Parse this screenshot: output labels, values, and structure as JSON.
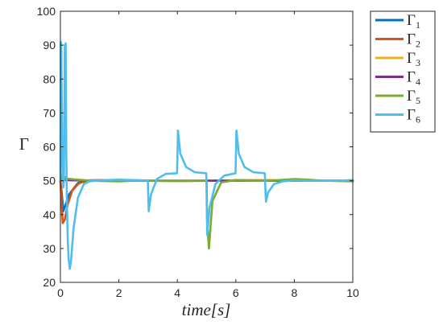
{
  "chart_data": {
    "type": "line",
    "title": "",
    "xlabel": "time[s]",
    "ylabel": "Γ",
    "xlim": [
      0,
      10
    ],
    "ylim": [
      20,
      100
    ],
    "xticks": [
      0,
      2,
      4,
      6,
      8,
      10
    ],
    "yticks": [
      20,
      30,
      40,
      50,
      60,
      70,
      80,
      90,
      100
    ],
    "grid": false,
    "legend_position": "outside-top-right",
    "series": [
      {
        "name": "Γ1",
        "label_main": "Γ",
        "label_sub": "1",
        "color": "#0072BD",
        "x": [
          0,
          0.05,
          0.1,
          0.3,
          0.6,
          1.0,
          2.0,
          3.0,
          4.0,
          5.0,
          6.0,
          7.0,
          8.0,
          9.0,
          10.0
        ],
        "y": [
          50,
          46,
          41,
          46,
          49.3,
          50.1,
          50.2,
          50.0,
          49.9,
          50.0,
          50.1,
          50.1,
          50.0,
          50.0,
          50.0
        ]
      },
      {
        "name": "Γ2",
        "label_main": "Γ",
        "label_sub": "2",
        "color": "#D95319",
        "x": [
          0,
          0.03,
          0.08,
          0.15,
          0.25,
          0.4,
          0.6,
          0.8,
          1.0,
          1.5,
          2.0,
          3.0,
          4.0,
          5.0,
          6.0,
          7.0,
          8.0,
          9.0,
          10.0
        ],
        "y": [
          50,
          45,
          37.5,
          38.5,
          43,
          47,
          49,
          49.8,
          50.1,
          50.2,
          50.1,
          50.0,
          50.0,
          50.0,
          50.1,
          50.1,
          50.0,
          50.0,
          50.0
        ]
      },
      {
        "name": "Γ3",
        "label_main": "Γ",
        "label_sub": "3",
        "color": "#EDB120",
        "x": [
          0,
          0.05,
          0.2,
          0.5,
          1.0,
          2.0,
          3.0,
          4.0,
          5.0,
          6.0,
          7.0,
          8.0,
          9.0,
          10.0
        ],
        "y": [
          50,
          51,
          50.6,
          50.3,
          50.1,
          50.0,
          50.0,
          49.9,
          50.0,
          50.1,
          50.2,
          50.1,
          50.0,
          49.9
        ]
      },
      {
        "name": "Γ4",
        "label_main": "Γ",
        "label_sub": "4",
        "color": "#7E2F8E",
        "x": [
          0,
          0.1,
          0.5,
          1.0,
          3.0,
          5.0,
          7.0,
          8.0,
          10.0
        ],
        "y": [
          50,
          50.2,
          50.1,
          50.0,
          50.0,
          50.0,
          50.0,
          50.0,
          50.0
        ]
      },
      {
        "name": "Γ5",
        "label_main": "Γ",
        "label_sub": "5",
        "color": "#77AC30",
        "x": [
          0,
          0.05,
          0.2,
          0.6,
          1.0,
          1.5,
          2.0,
          2.5,
          3.0,
          4.0,
          5.0,
          5.02,
          5.08,
          5.2,
          5.5,
          6.0,
          7.0,
          7.5,
          8.0,
          8.5,
          9.0,
          10.0
        ],
        "y": [
          50,
          52,
          50.6,
          50.3,
          50.0,
          49.9,
          49.8,
          50.0,
          50.0,
          50.0,
          50.0,
          38,
          30,
          44,
          49.5,
          50.2,
          50.0,
          50.2,
          50.5,
          50.3,
          50.0,
          49.8
        ]
      },
      {
        "name": "Γ6",
        "label_main": "Γ",
        "label_sub": "6",
        "color": "#4DBEEE",
        "x": [
          0,
          0.01,
          0.03,
          0.06,
          0.08,
          0.1,
          0.12,
          0.15,
          0.18,
          0.2,
          0.22,
          0.25,
          0.28,
          0.32,
          0.36,
          0.45,
          0.6,
          0.8,
          1.0,
          1.3,
          1.6,
          2.0,
          2.5,
          2.9,
          2.99,
          3.02,
          3.1,
          3.3,
          3.6,
          3.99,
          4.02,
          4.1,
          4.3,
          4.6,
          4.99,
          5.02,
          5.1,
          5.3,
          5.6,
          5.99,
          6.02,
          6.1,
          6.3,
          6.6,
          6.99,
          7.03,
          7.1,
          7.3,
          7.6,
          8.0,
          8.5,
          9.0,
          9.5,
          10.0
        ],
        "y": [
          50,
          91,
          90.5,
          60,
          52,
          48,
          50,
          90,
          90.5,
          60,
          45,
          33,
          27,
          24,
          26,
          36,
          45,
          49,
          49.8,
          50.1,
          50.2,
          50.3,
          50.2,
          50.1,
          50.1,
          41,
          46,
          50.5,
          52,
          52.2,
          64.8,
          58,
          54,
          52.5,
          52.2,
          34,
          42,
          49,
          51.5,
          52.2,
          64.8,
          58,
          54,
          52.5,
          52.2,
          43.8,
          46.5,
          49,
          49.8,
          50.1,
          50.0,
          50.0,
          50.0,
          50.2
        ]
      }
    ]
  }
}
